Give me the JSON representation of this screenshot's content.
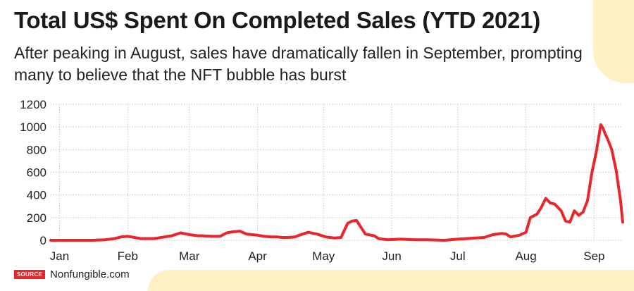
{
  "colors": {
    "line": "#e8262c",
    "grid": "#c8c8c8",
    "accent_bg": "#fdf0c4",
    "badge": "#e8262c"
  },
  "source": {
    "badge": "SOURCE",
    "name": "Nonfungible.com"
  },
  "chart_data": {
    "type": "line",
    "title": "Total US$ Spent On Completed Sales (YTD 2021)",
    "subtitle": "After peaking in August, sales have dramatically fallen in September, prompting many to believe that the NFT bubble has burst",
    "xlabel": "",
    "ylabel": "",
    "ylim": [
      0,
      1200
    ],
    "yticks": [
      0,
      200,
      400,
      600,
      800,
      1000,
      1200
    ],
    "grid": true,
    "x_domain": [
      1,
      261
    ],
    "months": [
      {
        "label": "Jan",
        "day": 5
      },
      {
        "label": "Feb",
        "day": 36
      },
      {
        "label": "Mar",
        "day": 64
      },
      {
        "label": "Apr",
        "day": 95
      },
      {
        "label": "May",
        "day": 125
      },
      {
        "label": "Jun",
        "day": 156
      },
      {
        "label": "Jul",
        "day": 186
      },
      {
        "label": "Aug",
        "day": 217
      },
      {
        "label": "Sep",
        "day": 248
      }
    ],
    "series": [
      {
        "name": "Total US$ spent on completed sales",
        "x": [
          1,
          20,
          26,
          30,
          33,
          36,
          39,
          42,
          48,
          56,
          60,
          64,
          68,
          70,
          74,
          78,
          81,
          84,
          87,
          90,
          95,
          98,
          101,
          104,
          106,
          109,
          112,
          114,
          118,
          122,
          126,
          128,
          130,
          133,
          134,
          136,
          138,
          140,
          144,
          148,
          150,
          154,
          160,
          166,
          172,
          180,
          186,
          190,
          194,
          198,
          202,
          206,
          208,
          210,
          214,
          217,
          219,
          222,
          224,
          226,
          228,
          230,
          233,
          235,
          237,
          239,
          241,
          243,
          245,
          247,
          249,
          251,
          252,
          253,
          254,
          256,
          258,
          260,
          261
        ],
        "y": [
          0,
          0,
          5,
          15,
          30,
          35,
          25,
          15,
          15,
          40,
          65,
          50,
          40,
          40,
          35,
          35,
          65,
          75,
          80,
          55,
          45,
          35,
          30,
          30,
          25,
          25,
          30,
          45,
          70,
          55,
          30,
          25,
          20,
          25,
          70,
          150,
          170,
          175,
          55,
          40,
          15,
          5,
          10,
          5,
          5,
          0,
          10,
          15,
          20,
          25,
          50,
          60,
          55,
          30,
          45,
          70,
          200,
          230,
          290,
          370,
          330,
          320,
          260,
          170,
          160,
          260,
          220,
          250,
          350,
          600,
          780,
          1020,
          990,
          940,
          900,
          800,
          620,
          350,
          160
        ]
      }
    ]
  }
}
